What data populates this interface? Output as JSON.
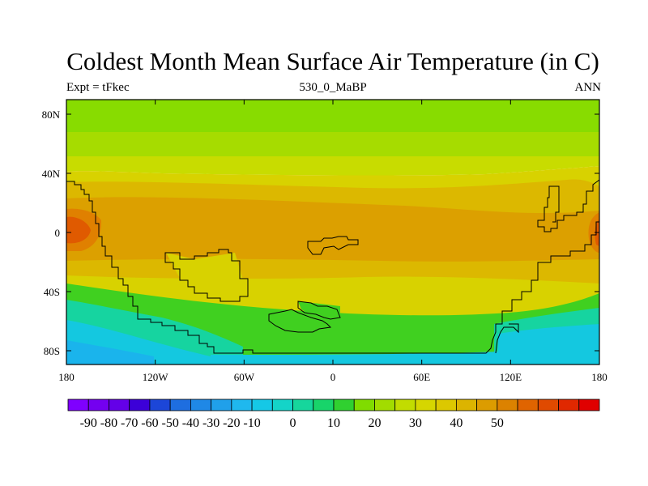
{
  "title": "Coldest Month Mean Surface Air Temperature (in C)",
  "subtitle_left": "Expt = tFkec",
  "subtitle_center": "530_0_MaBP",
  "subtitle_right": "ANN",
  "lat_ticks": [
    "80N",
    "40N",
    "0",
    "40S",
    "80S"
  ],
  "lon_ticks": [
    "180",
    "120W",
    "60W",
    "0",
    "60E",
    "120E",
    "180"
  ],
  "colorbar": {
    "labels": [
      "-90",
      "-80",
      "-70",
      "-60",
      "-50",
      "-40",
      "-30",
      "-20",
      "-10",
      "0",
      "10",
      "20",
      "30",
      "40",
      "50"
    ],
    "colors": [
      "#7f00ff",
      "#7400f0",
      "#6400e8",
      "#3c00d8",
      "#1c46d8",
      "#1e6ee0",
      "#1f88e6",
      "#20a0ea",
      "#1fb8ee",
      "#15c8e6",
      "#14d4c8",
      "#16d69c",
      "#18d46a",
      "#30d030",
      "#80dc00",
      "#a2dc00",
      "#c2dc00",
      "#d6d600",
      "#dcc800",
      "#dcb400",
      "#dc9c00",
      "#dc8200",
      "#e06400",
      "#e04a00",
      "#e02800",
      "#e00000"
    ]
  },
  "map_fills": {
    "green_top": "#88dc00",
    "light_green": "#a6dc00",
    "yellow_green": "#c8dc00",
    "yellow": "#d8d200",
    "yellow_orange": "#dcb800",
    "orange": "#dca000",
    "dark_orange": "#e08000",
    "red_orange": "#e05a00",
    "green": "#40d020",
    "teal": "#16d4a0",
    "cyan": "#14c8e0",
    "blue_cyan": "#1ab4ec"
  }
}
